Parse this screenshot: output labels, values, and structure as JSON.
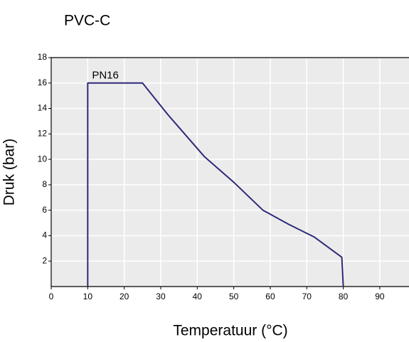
{
  "chart_data": {
    "type": "line",
    "title": "PVC-C",
    "xlabel": "Temperatuur (°C)",
    "ylabel": "Druk (bar)",
    "annotation": "PN16",
    "series": [
      {
        "name": "PN16",
        "color": "#2e2a7a",
        "x": [
          10,
          10,
          25,
          32,
          42,
          50,
          58,
          65,
          72,
          79.6,
          80
        ],
        "values": [
          0,
          16,
          16,
          13.5,
          10.2,
          8.2,
          6.0,
          4.9,
          3.9,
          2.3,
          0
        ]
      }
    ],
    "xlim": [
      0,
      98
    ],
    "xticks": [
      0,
      10,
      20,
      30,
      40,
      50,
      60,
      70,
      80,
      90
    ],
    "ylim": [
      0,
      18
    ],
    "yticks": [
      2,
      4,
      6,
      8,
      10,
      12,
      14,
      16,
      18
    ],
    "grid": true
  }
}
